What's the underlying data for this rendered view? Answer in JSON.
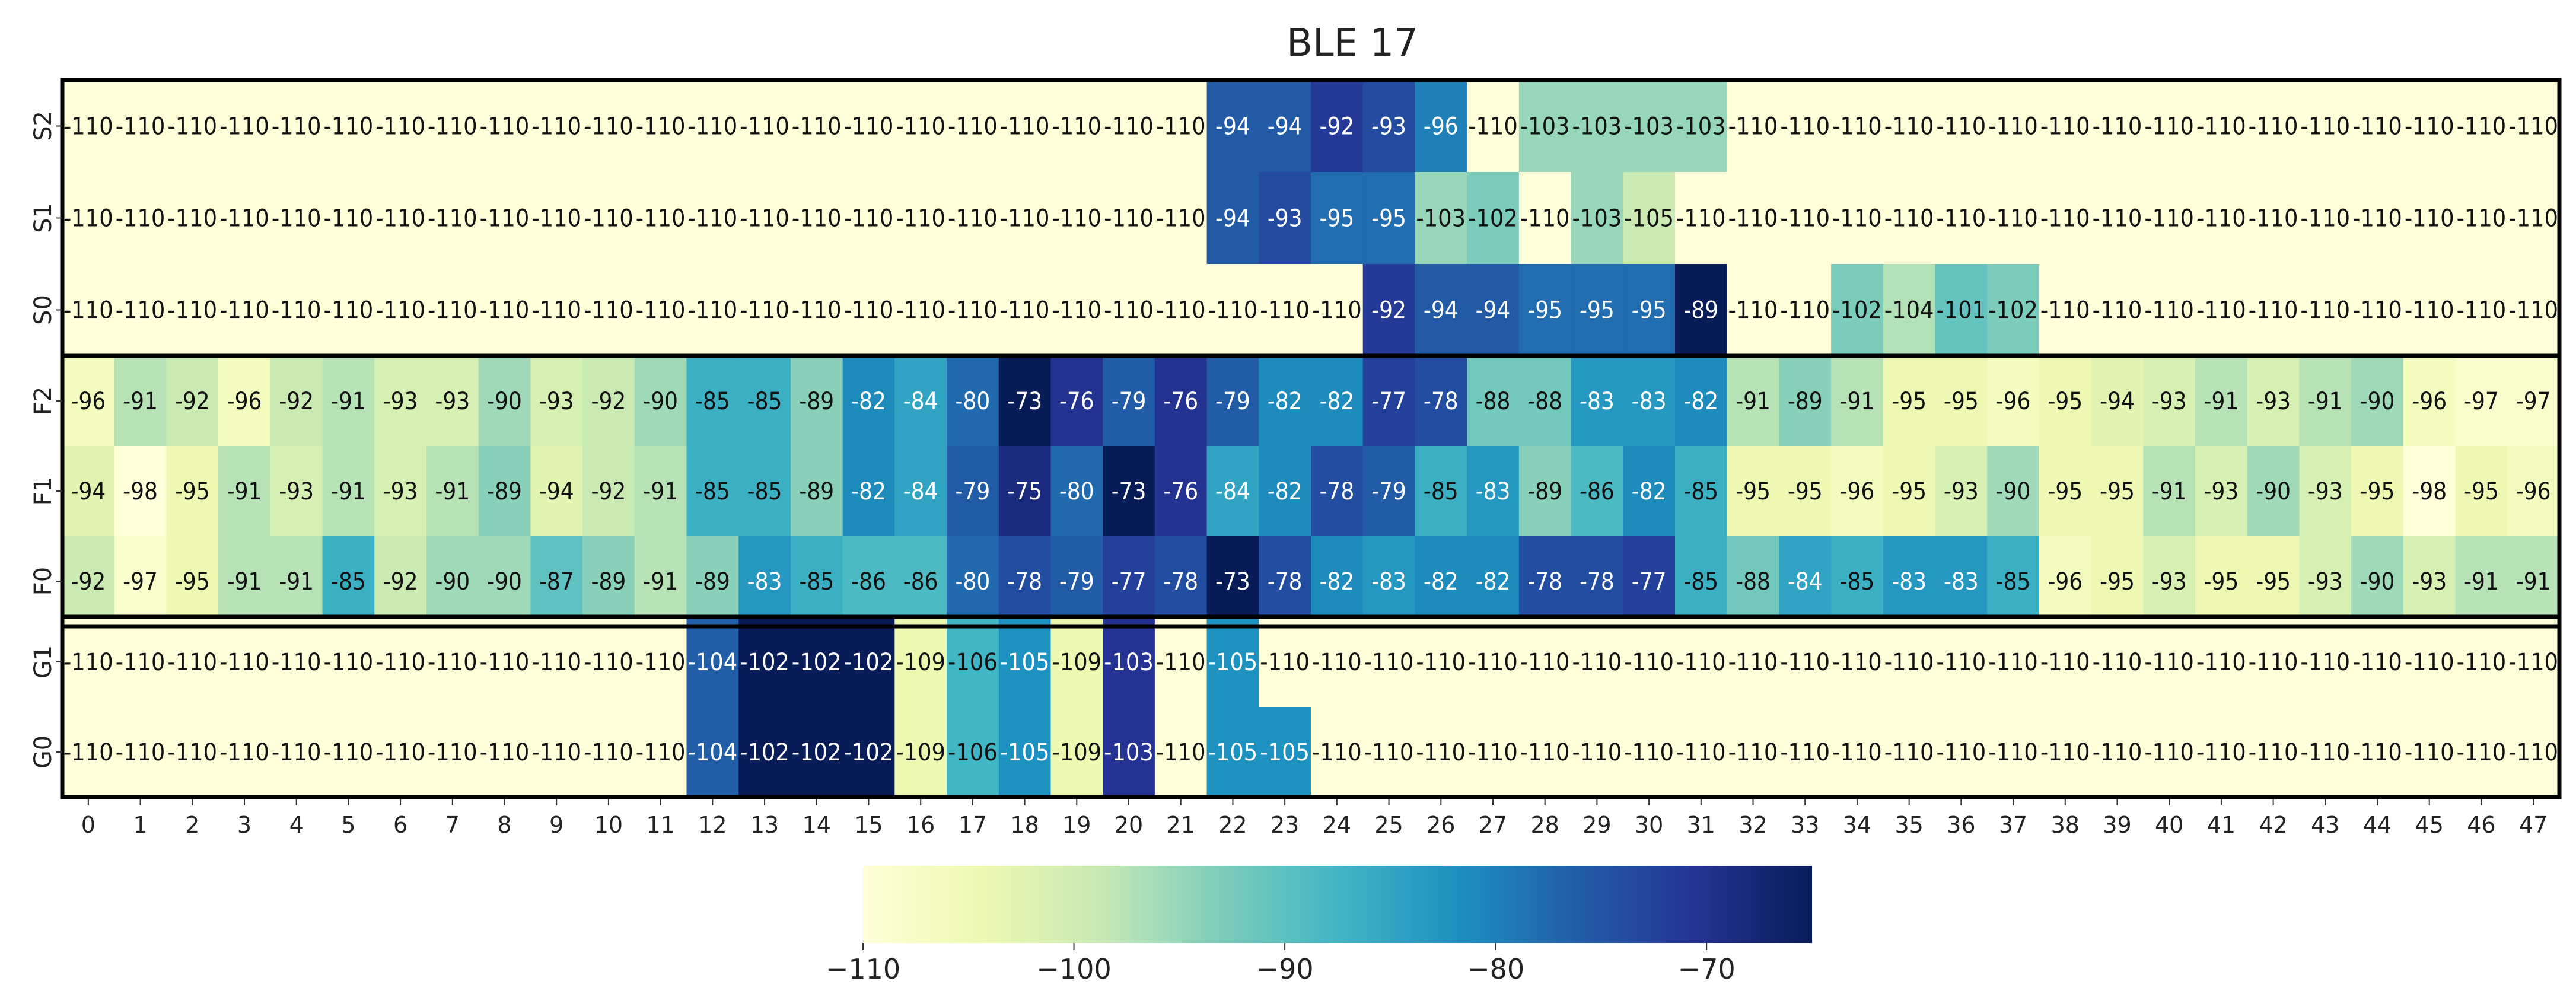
{
  "chart_data": {
    "type": "heatmap",
    "title": "BLE 17",
    "xlabel": "",
    "ylabel": "",
    "x_categories": [
      "0",
      "1",
      "2",
      "3",
      "4",
      "5",
      "6",
      "7",
      "8",
      "9",
      "10",
      "11",
      "12",
      "13",
      "14",
      "15",
      "16",
      "17",
      "18",
      "19",
      "20",
      "21",
      "22",
      "23",
      "24",
      "25",
      "26",
      "27",
      "28",
      "29",
      "30",
      "31",
      "32",
      "33",
      "34",
      "35",
      "36",
      "37",
      "38",
      "39",
      "40",
      "41",
      "42",
      "43",
      "44",
      "45",
      "46",
      "47"
    ],
    "y_categories": [
      "S2",
      "S1",
      "S0",
      "F2",
      "F1",
      "F0",
      "G1",
      "G0"
    ],
    "groups": [
      [
        "S2",
        "S1",
        "S0"
      ],
      [
        "F2",
        "F1",
        "F0"
      ],
      [
        "G1",
        "G0"
      ]
    ],
    "values": [
      [
        -110,
        -110,
        -110,
        -110,
        -110,
        -110,
        -110,
        -110,
        -110,
        -110,
        -110,
        -110,
        -110,
        -110,
        -110,
        -110,
        -110,
        -110,
        -110,
        -110,
        -110,
        -110,
        -94,
        -94,
        -92,
        -93,
        -96,
        -110,
        -103,
        -103,
        -103,
        -103,
        -110,
        -110,
        -110,
        -110,
        -110,
        -110,
        -110,
        -110,
        -110,
        -110,
        -110,
        -110,
        -110,
        -110,
        -110,
        -110
      ],
      [
        -110,
        -110,
        -110,
        -110,
        -110,
        -110,
        -110,
        -110,
        -110,
        -110,
        -110,
        -110,
        -110,
        -110,
        -110,
        -110,
        -110,
        -110,
        -110,
        -110,
        -110,
        -110,
        -94,
        -93,
        -95,
        -95,
        -103,
        -102,
        -110,
        -103,
        -105,
        -110,
        -110,
        -110,
        -110,
        -110,
        -110,
        -110,
        -110,
        -110,
        -110,
        -110,
        -110,
        -110,
        -110,
        -110,
        -110,
        -110
      ],
      [
        -110,
        -110,
        -110,
        -110,
        -110,
        -110,
        -110,
        -110,
        -110,
        -110,
        -110,
        -110,
        -110,
        -110,
        -110,
        -110,
        -110,
        -110,
        -110,
        -110,
        -110,
        -110,
        -110,
        -110,
        -110,
        -92,
        -94,
        -94,
        -95,
        -95,
        -95,
        -89,
        -110,
        -110,
        -102,
        -104,
        -101,
        -102,
        -110,
        -110,
        -110,
        -110,
        -110,
        -110,
        -110,
        -110,
        -110,
        -110
      ],
      [
        -96,
        -91,
        -92,
        -96,
        -92,
        -91,
        -93,
        -93,
        -90,
        -93,
        -92,
        -90,
        -85,
        -85,
        -89,
        -82,
        -84,
        -80,
        -73,
        -76,
        -79,
        -76,
        -79,
        -82,
        -82,
        -77,
        -78,
        -88,
        -88,
        -83,
        -83,
        -82,
        -91,
        -89,
        -91,
        -95,
        -95,
        -96,
        -95,
        -94,
        -93,
        -91,
        -93,
        -91,
        -90,
        -96,
        -97,
        -97
      ],
      [
        -94,
        -98,
        -95,
        -91,
        -93,
        -91,
        -93,
        -91,
        -89,
        -94,
        -92,
        -91,
        -85,
        -85,
        -89,
        -82,
        -84,
        -79,
        -75,
        -80,
        -73,
        -76,
        -84,
        -82,
        -78,
        -79,
        -85,
        -83,
        -89,
        -86,
        -82,
        -85,
        -95,
        -95,
        -96,
        -95,
        -93,
        -90,
        -95,
        -95,
        -91,
        -93,
        -90,
        -93,
        -95,
        -98,
        -95,
        -96
      ],
      [
        -92,
        -97,
        -95,
        -91,
        -91,
        -85,
        -92,
        -90,
        -90,
        -87,
        -89,
        -91,
        -89,
        -83,
        -85,
        -86,
        -86,
        -80,
        -78,
        -79,
        -77,
        -78,
        -73,
        -78,
        -82,
        -83,
        -82,
        -82,
        -78,
        -78,
        -77,
        -85,
        -88,
        -84,
        -85,
        -83,
        -83,
        -85,
        -96,
        -95,
        -93,
        -95,
        -95,
        -93,
        -90,
        -93,
        -91,
        -91
      ],
      [
        -110,
        -110,
        -110,
        -110,
        -110,
        -110,
        -110,
        -110,
        -110,
        -110,
        -110,
        -110,
        -104,
        -102,
        -102,
        -102,
        -109,
        -106,
        -105,
        -109,
        -103,
        -110,
        -105,
        -110,
        -110,
        -110,
        -110,
        -110,
        -110,
        -110,
        -110,
        -110,
        -110,
        -110,
        -110,
        -110,
        -110,
        -110,
        -110,
        -110,
        -110,
        -110,
        -110,
        -110,
        -110,
        -110,
        -110,
        -110
      ],
      [
        -110,
        -110,
        -110,
        -110,
        -110,
        -110,
        -110,
        -110,
        -110,
        -110,
        -110,
        -110,
        -104,
        -102,
        -102,
        -102,
        -109,
        -106,
        -105,
        -109,
        -103,
        -110,
        -105,
        -105,
        -110,
        -110,
        -110,
        -110,
        -110,
        -110,
        -110,
        -110,
        -110,
        -110,
        -110,
        -110,
        -110,
        -110,
        -110,
        -110,
        -110,
        -110,
        -110,
        -110,
        -110,
        -110,
        -110,
        -110
      ]
    ],
    "group_value_ranges": [
      [
        -110,
        -89
      ],
      [
        -98,
        -73
      ],
      [
        -110,
        -102
      ]
    ],
    "colorbar": {
      "range": [
        -110,
        -65
      ],
      "ticks": [
        -110,
        -100,
        -90,
        -80,
        -70
      ],
      "tick_labels": [
        "−110",
        "−100",
        "−90",
        "−80",
        "−70"
      ],
      "colormap": "YlGnBu",
      "stops": [
        "#ffffd9",
        "#edf8b1",
        "#c7e9b4",
        "#7fcdbb",
        "#41b6c4",
        "#1d91c0",
        "#225ea8",
        "#253494",
        "#081d58"
      ]
    },
    "grid": false,
    "legend": "bottom-center colorbar"
  }
}
